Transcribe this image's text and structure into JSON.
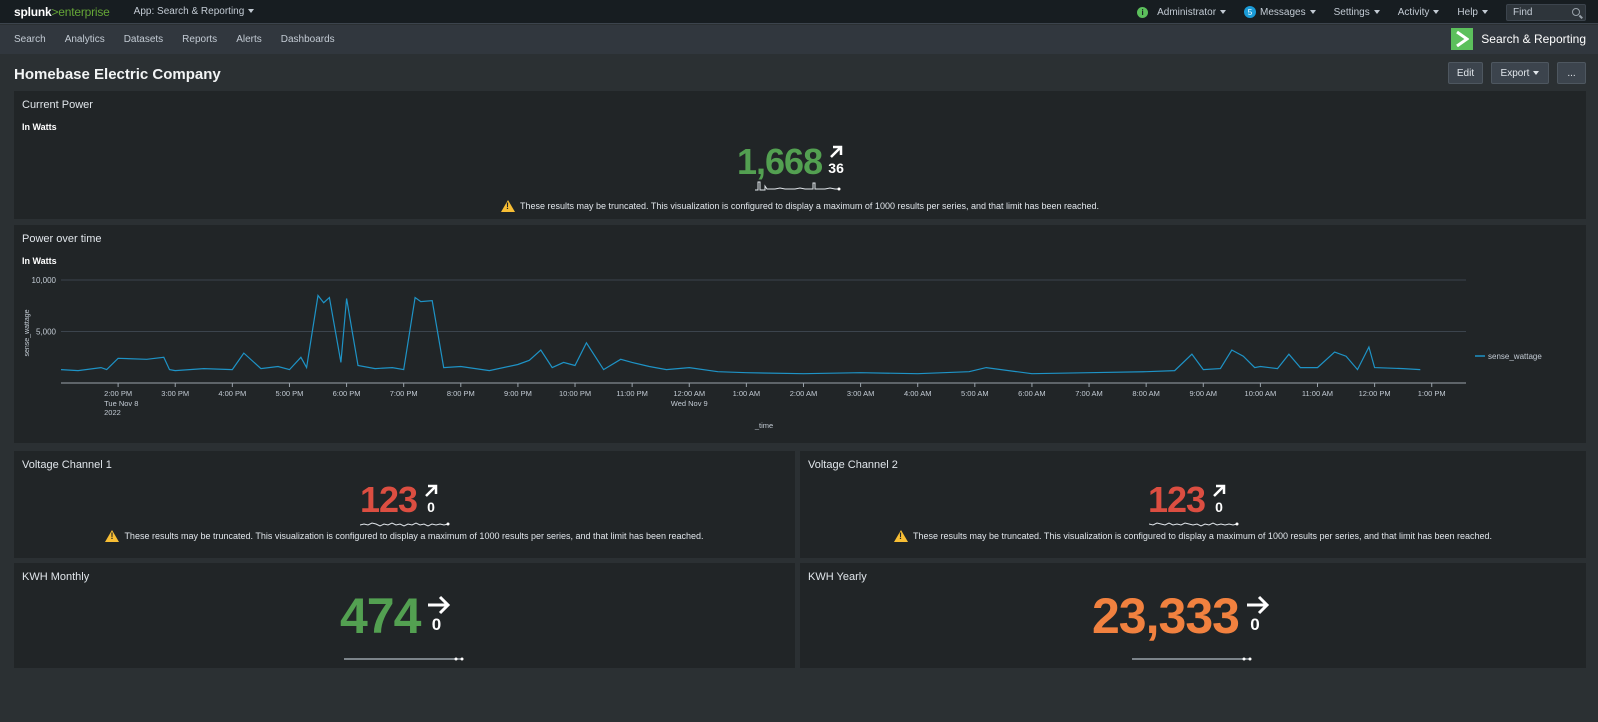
{
  "topbar": {
    "logo_main": "splunk",
    "logo_gt": ">",
    "logo_suffix": "enterprise",
    "app_menu": "App: Search & Reporting",
    "admin": "Administrator",
    "messages_count": "5",
    "messages": "Messages",
    "settings": "Settings",
    "activity": "Activity",
    "help": "Help",
    "find_placeholder": "Find"
  },
  "nav": {
    "items": [
      "Search",
      "Analytics",
      "Datasets",
      "Reports",
      "Alerts",
      "Dashboards"
    ],
    "app_name": "Search & Reporting"
  },
  "dashboard": {
    "title": "Homebase Electric Company",
    "edit_label": "Edit",
    "export_label": "Export",
    "more_label": "..."
  },
  "warning_text": "These results may be truncated. This visualization is configured to display a maximum of 1000 results per series, and that limit has been reached.",
  "panels": {
    "current_power": {
      "title": "Current Power",
      "subtitle": "In Watts",
      "value": "1,668",
      "delta": "36",
      "trend": "up",
      "color": "#53a051"
    },
    "power_over_time": {
      "title": "Power over time",
      "subtitle": "In Watts"
    },
    "voltage1": {
      "title": "Voltage Channel 1",
      "value": "123",
      "delta": "0",
      "trend": "up",
      "color": "#dc4e41"
    },
    "voltage2": {
      "title": "Voltage Channel 2",
      "value": "123",
      "delta": "0",
      "trend": "up",
      "color": "#dc4e41"
    },
    "kwh_monthly": {
      "title": "KWH Monthly",
      "value": "474",
      "delta": "0",
      "trend": "flat",
      "color": "#53a051"
    },
    "kwh_yearly": {
      "title": "KWH Yearly",
      "value": "23,333",
      "delta": "0",
      "trend": "flat",
      "color": "#f1813f"
    }
  },
  "chart_data": {
    "type": "line",
    "ylabel": "sense_wattage",
    "xlabel": "_time",
    "ylim": [
      0,
      10000
    ],
    "y_ticks": [
      "5,000",
      "10,000"
    ],
    "legend": "right",
    "x_ticks": [
      "2:00 PM",
      "3:00 PM",
      "4:00 PM",
      "5:00 PM",
      "6:00 PM",
      "7:00 PM",
      "8:00 PM",
      "9:00 PM",
      "10:00 PM",
      "11:00 PM",
      "12:00 AM",
      "1:00 AM",
      "2:00 AM",
      "3:00 AM",
      "4:00 AM",
      "5:00 AM",
      "6:00 AM",
      "7:00 AM",
      "8:00 AM",
      "9:00 AM",
      "10:00 AM",
      "11:00 AM",
      "12:00 PM",
      "1:00 PM"
    ],
    "x_tick_sub": {
      "0": [
        "Tue Nov 8",
        "2022"
      ],
      "10": [
        "Wed Nov 9"
      ]
    },
    "series": [
      {
        "name": "sense_wattage",
        "color": "#1e93c6",
        "hours": [
          13.0,
          13.3,
          13.7,
          13.8,
          14.0,
          14.5,
          14.8,
          14.9,
          15.0,
          15.5,
          16.0,
          16.2,
          16.5,
          16.8,
          17.0,
          17.2,
          17.3,
          17.5,
          17.6,
          17.7,
          17.9,
          18.0,
          18.2,
          18.5,
          18.8,
          19.0,
          19.2,
          19.3,
          19.5,
          19.7,
          20.0,
          20.5,
          21.0,
          21.2,
          21.4,
          21.6,
          21.8,
          22.0,
          22.2,
          22.5,
          22.8,
          23.0,
          23.3,
          23.6,
          24.0,
          24.5,
          25.0,
          26.0,
          27.0,
          28.0,
          28.9,
          29.2,
          30.0,
          31.0,
          32.0,
          32.5,
          32.8,
          33.0,
          33.3,
          33.5,
          33.7,
          33.9,
          34.0,
          34.3,
          34.5,
          34.7,
          35.0,
          35.3,
          35.5,
          35.7,
          35.9,
          36.0,
          36.5,
          36.8
        ],
        "values": [
          1300,
          1200,
          1500,
          1300,
          2400,
          2300,
          2500,
          1300,
          1200,
          1400,
          1300,
          2900,
          1400,
          1600,
          1300,
          2500,
          1500,
          8500,
          7800,
          8300,
          2000,
          8200,
          1700,
          1400,
          1500,
          1300,
          8300,
          7900,
          8000,
          1500,
          1600,
          1200,
          1800,
          2200,
          3200,
          1500,
          2000,
          1700,
          3900,
          1300,
          2300,
          2000,
          1600,
          1300,
          1500,
          1100,
          1000,
          900,
          1000,
          900,
          1100,
          1500,
          900,
          1000,
          1100,
          1200,
          2800,
          1300,
          1400,
          3200,
          2600,
          1500,
          1600,
          1400,
          2800,
          1500,
          1500,
          3000,
          2600,
          1300,
          3500,
          1500,
          1400,
          1300
        ]
      }
    ]
  }
}
